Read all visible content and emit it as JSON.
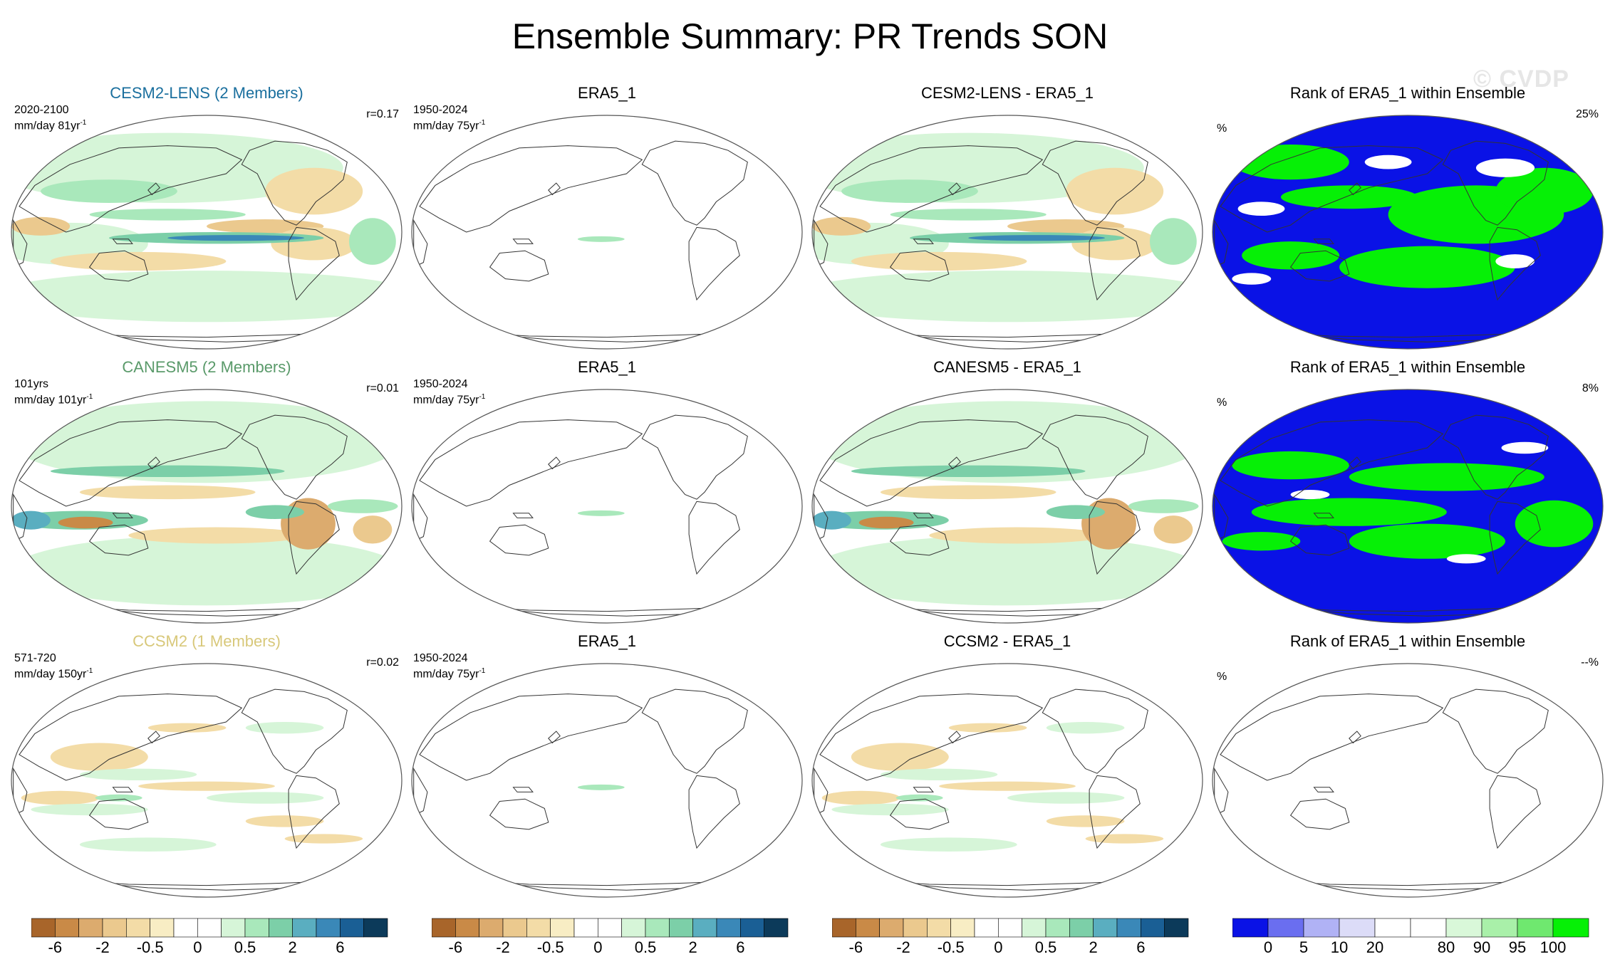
{
  "title": "Ensemble Summary: PR Trends SON",
  "watermark": "© CVDP",
  "colors": {
    "ocean_outline": "#555555",
    "coast": "#333333",
    "rank_low": "#0a12e6",
    "rank_high": "#06f006"
  },
  "rows": [
    {
      "model_title": "CESM2-LENS (2 Members)",
      "model_title_color": "#1a6f9e",
      "model_period": "2020-2100",
      "model_units": "mm/day 81yr",
      "model_units_sup": "-1",
      "model_corr": "r=0.17",
      "obs_title": "ERA5_1",
      "obs_period": "1950-2024",
      "obs_units": "mm/day 75yr",
      "obs_units_sup": "-1",
      "diff_title": "CESM2-LENS - ERA5_1",
      "rank_title": "Rank of ERA5_1 within Ensemble",
      "rank_units": "%",
      "rank_value": "25%",
      "style": "cesm"
    },
    {
      "model_title": "CANESM5 (2 Members)",
      "model_title_color": "#5a9a6a",
      "model_period": "101yrs",
      "model_units": "mm/day 101yr",
      "model_units_sup": "-1",
      "model_corr": "r=0.01",
      "obs_title": "ERA5_1",
      "obs_period": "1950-2024",
      "obs_units": "mm/day 75yr",
      "obs_units_sup": "-1",
      "diff_title": "CANESM5 - ERA5_1",
      "rank_title": "Rank of ERA5_1 within Ensemble",
      "rank_units": "%",
      "rank_value": "8%",
      "style": "canesm"
    },
    {
      "model_title": "CCSM2 (1 Members)",
      "model_title_color": "#d8c87a",
      "model_period": "571-720",
      "model_units": "mm/day 150yr",
      "model_units_sup": "-1",
      "model_corr": "r=0.02",
      "obs_title": "ERA5_1",
      "obs_period": "1950-2024",
      "obs_units": "mm/day 75yr",
      "obs_units_sup": "-1",
      "diff_title": "CCSM2 - ERA5_1",
      "rank_title": "Rank of ERA5_1 within Ensemble",
      "rank_units": "%",
      "rank_value": "--%",
      "style": "ccsm"
    }
  ],
  "trend_colorbar": {
    "colors": [
      "#a8652a",
      "#c98a47",
      "#dcab6e",
      "#ebc98e",
      "#f3dca7",
      "#f8edc4",
      "#ffffff",
      "#ffffff",
      "#d6f5d8",
      "#a9e8bb",
      "#7ccfa8",
      "#5aaec0",
      "#3a88b8",
      "#1a5f95",
      "#0c3a5a"
    ],
    "labels": [
      "-6",
      "-2",
      "-0.5",
      "0",
      "0.5",
      "2",
      "6"
    ],
    "label_boundaries": [
      1,
      3,
      5,
      7,
      9,
      11,
      13
    ]
  },
  "rank_colorbar": {
    "colors": [
      "#0a12e6",
      "#6a6ef0",
      "#b0b2f5",
      "#dcdcf8",
      "#ffffff",
      "#ffffff",
      "#d9f8d9",
      "#a9f0a9",
      "#6fe86f",
      "#06f006"
    ],
    "labels": [
      "0",
      "5",
      "10",
      "20",
      "80",
      "90",
      "95",
      "100"
    ],
    "label_boundaries": [
      1,
      2,
      3,
      4,
      6,
      7,
      8,
      9
    ]
  }
}
